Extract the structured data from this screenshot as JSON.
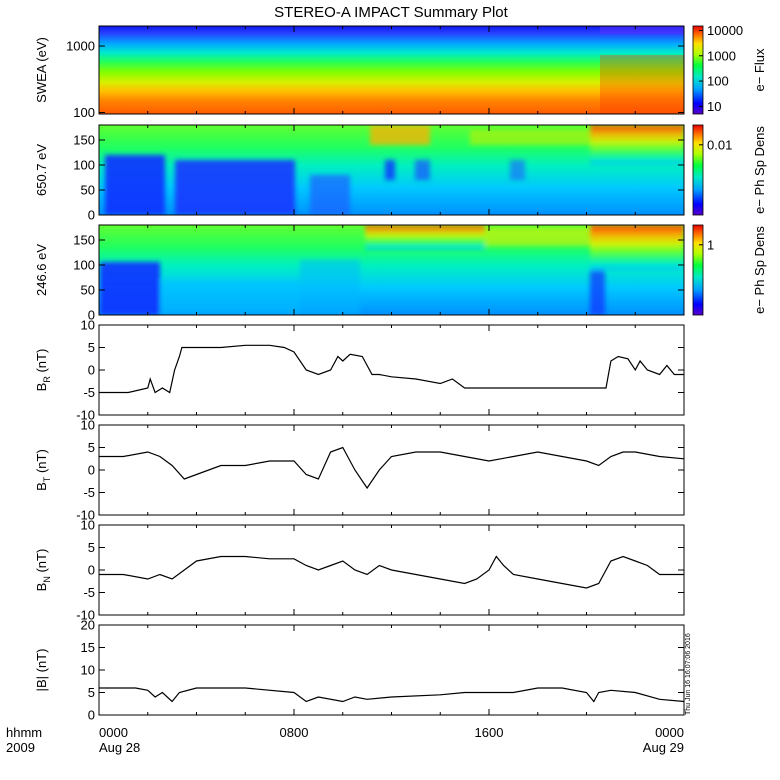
{
  "title": "STEREO-A IMPACT Summary Plot",
  "side_stamp": "Thu Jun 16 16:07:06 2016",
  "time_axis": {
    "label_top": "hhmm",
    "label_bottom": "2009",
    "ticks": [
      {
        "hhmm": "0000",
        "date": "Aug 28",
        "hour": 0
      },
      {
        "hhmm": "0800",
        "date": "",
        "hour": 8
      },
      {
        "hhmm": "1600",
        "date": "",
        "hour": 16
      },
      {
        "hhmm": "0000",
        "date": "Aug 29",
        "hour": 24
      }
    ],
    "range_hours": [
      0,
      24
    ]
  },
  "chart_data": [
    {
      "type": "heatmap",
      "name": "swea-spectrogram",
      "ylabel": "SWEA (eV)",
      "ylog": true,
      "ylim": [
        95,
        2000
      ],
      "yticks": [
        "100",
        "1000"
      ],
      "colorbar": {
        "label": "e− Flux",
        "log": true,
        "ticks": [
          "10",
          "100",
          "1000",
          "10000"
        ],
        "range": [
          5,
          15000
        ]
      },
      "colormap": [
        "#5a00c8",
        "#0000ff",
        "#00a0ff",
        "#00e8c8",
        "#00ff40",
        "#b0ff00",
        "#ffe000",
        "#ff7000",
        "#e80000"
      ]
    },
    {
      "type": "heatmap",
      "name": "pad-650",
      "ylabel": "650.7 eV",
      "ylim": [
        0,
        180
      ],
      "yticks": [
        "0",
        "50",
        "100",
        "150"
      ],
      "colorbar": {
        "label": "e− Ph Sp Dens",
        "ticks": [
          "0.01"
        ]
      }
    },
    {
      "type": "heatmap",
      "name": "pad-246",
      "ylabel": "246.6 eV",
      "ylim": [
        0,
        180
      ],
      "yticks": [
        "0",
        "50",
        "100",
        "150"
      ],
      "colorbar": {
        "label": "e− Ph Sp Dens",
        "ticks": [
          "1"
        ]
      }
    },
    {
      "type": "line",
      "name": "br",
      "ylabel_main": "B",
      "ylabel_sub": "R",
      "ylabel_unit": " (nT)",
      "ylim": [
        -10,
        10
      ],
      "yticks": [
        "-10",
        "-5",
        "0",
        "5",
        "10"
      ],
      "x": [
        0,
        1.2,
        2.0,
        2.1,
        2.3,
        2.6,
        2.9,
        3.1,
        3.3,
        3.4,
        3.6,
        4.0,
        5.0,
        6.0,
        7.0,
        7.6,
        8.0,
        8.5,
        9.0,
        9.5,
        9.8,
        10.0,
        10.3,
        10.8,
        11.2,
        11.5,
        12.0,
        13.0,
        14.0,
        14.5,
        15.0,
        16.0,
        17.0,
        18.0,
        20.0,
        20.8,
        21.0,
        21.3,
        21.7,
        22.0,
        22.2,
        22.5,
        23.0,
        23.3,
        23.6,
        24.0
      ],
      "y": [
        -5,
        -5,
        -4,
        -2,
        -5,
        -4,
        -5,
        0,
        3,
        5,
        5,
        5,
        5,
        5.5,
        5.5,
        5,
        4,
        0,
        -1,
        0,
        3,
        2,
        3.5,
        3,
        -1,
        -1,
        -1.5,
        -2,
        -3,
        -2,
        -4,
        -4,
        -4,
        -4,
        -4,
        -4,
        2,
        3,
        2.5,
        0,
        2,
        0,
        -1,
        1,
        -1,
        -1
      ]
    },
    {
      "type": "line",
      "name": "bt",
      "ylabel_main": "B",
      "ylabel_sub": "T",
      "ylabel_unit": " (nT)",
      "ylim": [
        -10,
        10
      ],
      "yticks": [
        "-10",
        "-5",
        "0",
        "5",
        "10"
      ],
      "x": [
        0,
        1.0,
        2.0,
        2.5,
        3.0,
        3.5,
        4.0,
        5.0,
        6.0,
        7.0,
        8.0,
        8.5,
        9.0,
        9.5,
        10.0,
        10.5,
        11.0,
        11.5,
        12.0,
        13.0,
        14.0,
        15.0,
        16.0,
        17.0,
        18.0,
        19.0,
        20.0,
        20.5,
        21.0,
        21.5,
        22.0,
        23.0,
        24.0
      ],
      "y": [
        3,
        3,
        4,
        3,
        1,
        -2,
        -1,
        1,
        1,
        2,
        2,
        -1,
        -2,
        4,
        5,
        0,
        -4,
        0,
        3,
        4,
        4,
        3,
        2,
        3,
        4,
        3,
        2,
        1,
        3,
        4,
        4,
        3,
        2.5
      ]
    },
    {
      "type": "line",
      "name": "bn",
      "ylabel_main": "B",
      "ylabel_sub": "N",
      "ylabel_unit": " (nT)",
      "ylim": [
        -10,
        10
      ],
      "yticks": [
        "-10",
        "-5",
        "0",
        "5",
        "10"
      ],
      "x": [
        0,
        1.0,
        2.0,
        2.5,
        3.0,
        3.5,
        4.0,
        5.0,
        6.0,
        7.0,
        8.0,
        8.5,
        9.0,
        9.5,
        10.0,
        10.5,
        11.0,
        11.5,
        12.0,
        13.0,
        14.0,
        15.0,
        15.5,
        16.0,
        16.3,
        16.6,
        17.0,
        18.0,
        19.0,
        20.0,
        20.5,
        21.0,
        21.5,
        22.0,
        22.5,
        23.0,
        23.5,
        24.0
      ],
      "y": [
        -1,
        -1,
        -2,
        -1,
        -2,
        0,
        2,
        3,
        3,
        2.5,
        2.5,
        1,
        0,
        1,
        2,
        0,
        -1,
        1,
        0,
        -1,
        -2,
        -3,
        -2,
        0,
        3,
        1,
        -1,
        -2,
        -3,
        -4,
        -3,
        2,
        3,
        2,
        1,
        -1,
        -1,
        -1
      ]
    },
    {
      "type": "line",
      "name": "bmag",
      "ylabel_main": "|B|",
      "ylabel_unit": " (nT)",
      "ylim": [
        0,
        20
      ],
      "yticks": [
        "0",
        "5",
        "10",
        "15",
        "20"
      ],
      "x": [
        0,
        1.5,
        2.0,
        2.3,
        2.6,
        3.0,
        3.3,
        4.0,
        6.0,
        8.0,
        8.5,
        9.0,
        10.0,
        10.5,
        11.0,
        12.0,
        14.0,
        15.0,
        16.0,
        17.0,
        18.0,
        19.0,
        20.0,
        20.3,
        20.5,
        21.0,
        22.0,
        23.0,
        24.0
      ],
      "y": [
        6,
        6,
        5.5,
        4,
        5,
        3,
        5,
        6,
        6,
        5,
        3,
        4,
        3,
        4,
        3.5,
        4,
        4.5,
        5,
        5,
        5,
        6,
        6,
        5,
        3,
        5,
        5.5,
        5,
        3.5,
        3
      ]
    }
  ]
}
